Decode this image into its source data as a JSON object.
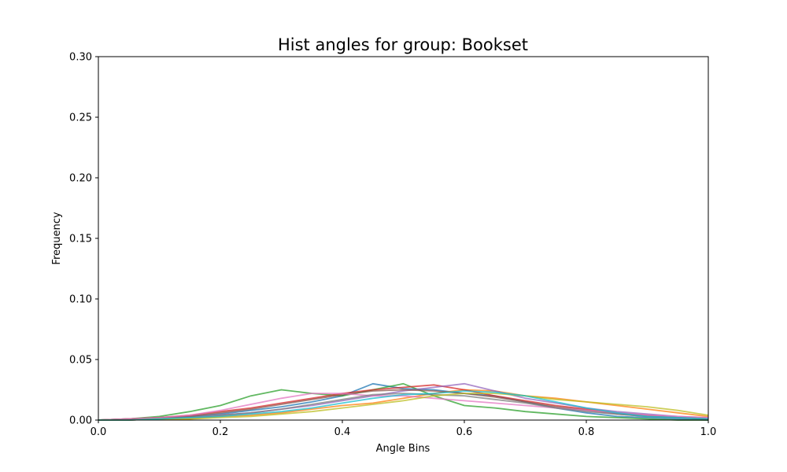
{
  "chart_data": {
    "type": "line",
    "title": "Hist angles for group: Bookset",
    "xlabel": "Angle Bins",
    "ylabel": "Frequency",
    "xlim": [
      0.0,
      1.0
    ],
    "ylim": [
      0.0,
      0.3
    ],
    "x_ticks": [
      "0.0",
      "0.2",
      "0.4",
      "0.6",
      "0.8",
      "1.0"
    ],
    "y_ticks": [
      "0.00",
      "0.05",
      "0.10",
      "0.15",
      "0.20",
      "0.25",
      "0.30"
    ],
    "grid": false,
    "legend": "none",
    "x": [
      0.0,
      0.05,
      0.1,
      0.15,
      0.2,
      0.25,
      0.3,
      0.35,
      0.4,
      0.45,
      0.5,
      0.55,
      0.6,
      0.65,
      0.7,
      0.75,
      0.8,
      0.85,
      0.9,
      0.95,
      1.0
    ],
    "series": [
      {
        "color": "#1f77b4",
        "values": [
          0.0,
          0.001,
          0.002,
          0.003,
          0.005,
          0.008,
          0.011,
          0.015,
          0.02,
          0.03,
          0.026,
          0.025,
          0.022,
          0.02,
          0.015,
          0.01,
          0.006,
          0.003,
          0.002,
          0.001,
          0.0
        ]
      },
      {
        "color": "#ff7f0e",
        "values": [
          0.0,
          0.0,
          0.001,
          0.001,
          0.003,
          0.004,
          0.006,
          0.009,
          0.012,
          0.014,
          0.018,
          0.022,
          0.025,
          0.024,
          0.02,
          0.018,
          0.015,
          0.012,
          0.009,
          0.006,
          0.003
        ]
      },
      {
        "color": "#2ca02c",
        "values": [
          0.0,
          0.001,
          0.003,
          0.007,
          0.012,
          0.02,
          0.025,
          0.022,
          0.02,
          0.025,
          0.03,
          0.02,
          0.012,
          0.01,
          0.007,
          0.005,
          0.003,
          0.002,
          0.001,
          0.0,
          0.0
        ]
      },
      {
        "color": "#d62728",
        "values": [
          0.0,
          0.001,
          0.002,
          0.004,
          0.007,
          0.01,
          0.014,
          0.018,
          0.022,
          0.025,
          0.027,
          0.029,
          0.025,
          0.02,
          0.016,
          0.012,
          0.009,
          0.006,
          0.004,
          0.002,
          0.001
        ]
      },
      {
        "color": "#9467bd",
        "values": [
          0.0,
          0.0,
          0.001,
          0.002,
          0.004,
          0.006,
          0.009,
          0.012,
          0.016,
          0.02,
          0.024,
          0.027,
          0.03,
          0.024,
          0.018,
          0.014,
          0.01,
          0.007,
          0.005,
          0.003,
          0.002
        ]
      },
      {
        "color": "#8c564b",
        "values": [
          0.0,
          0.001,
          0.002,
          0.003,
          0.006,
          0.009,
          0.013,
          0.017,
          0.021,
          0.024,
          0.025,
          0.024,
          0.022,
          0.019,
          0.015,
          0.011,
          0.008,
          0.005,
          0.003,
          0.002,
          0.001
        ]
      },
      {
        "color": "#e377c2",
        "values": [
          0.0,
          0.001,
          0.002,
          0.004,
          0.008,
          0.013,
          0.018,
          0.022,
          0.022,
          0.02,
          0.02,
          0.018,
          0.016,
          0.014,
          0.012,
          0.01,
          0.008,
          0.006,
          0.004,
          0.003,
          0.002
        ]
      },
      {
        "color": "#7f7f7f",
        "values": [
          0.0,
          0.0,
          0.001,
          0.002,
          0.004,
          0.006,
          0.009,
          0.013,
          0.017,
          0.021,
          0.022,
          0.021,
          0.02,
          0.017,
          0.014,
          0.01,
          0.007,
          0.005,
          0.003,
          0.002,
          0.001
        ]
      },
      {
        "color": "#bcbd22",
        "values": [
          0.0,
          0.0,
          0.001,
          0.001,
          0.002,
          0.003,
          0.005,
          0.007,
          0.01,
          0.013,
          0.016,
          0.02,
          0.022,
          0.022,
          0.02,
          0.017,
          0.015,
          0.013,
          0.011,
          0.008,
          0.004
        ]
      },
      {
        "color": "#17becf",
        "values": [
          0.0,
          0.0,
          0.001,
          0.002,
          0.003,
          0.005,
          0.007,
          0.01,
          0.014,
          0.018,
          0.021,
          0.022,
          0.024,
          0.023,
          0.02,
          0.015,
          0.01,
          0.006,
          0.003,
          0.002,
          0.001
        ]
      }
    ]
  }
}
